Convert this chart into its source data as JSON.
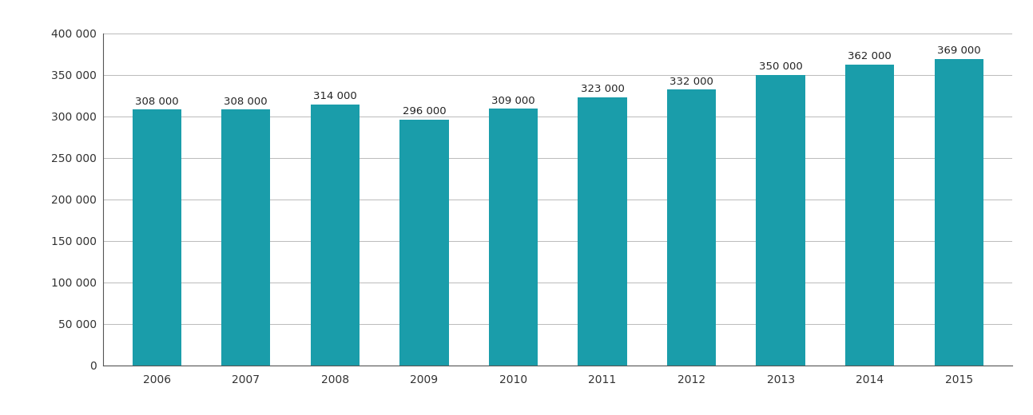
{
  "years": [
    2006,
    2007,
    2008,
    2009,
    2010,
    2011,
    2012,
    2013,
    2014,
    2015
  ],
  "values": [
    308000,
    308000,
    314000,
    296000,
    309000,
    323000,
    332000,
    350000,
    362000,
    369000
  ],
  "labels": [
    "308 000",
    "308 000",
    "314 000",
    "296 000",
    "309 000",
    "323 000",
    "332 000",
    "350 000",
    "362 000",
    "369 000"
  ],
  "bar_color": "#1a9daa",
  "background_color": "#ffffff",
  "ylim": [
    0,
    400000
  ],
  "yticks": [
    0,
    50000,
    100000,
    150000,
    200000,
    250000,
    300000,
    350000,
    400000
  ],
  "ytick_labels": [
    "0",
    "50 000",
    "100 000",
    "150 000",
    "200 000",
    "250 000",
    "300 000",
    "350 000",
    "400 000"
  ],
  "grid_color": "#b0b0b0",
  "label_fontsize": 9.5,
  "tick_fontsize": 10,
  "bar_width": 0.55,
  "spine_color": "#555555"
}
